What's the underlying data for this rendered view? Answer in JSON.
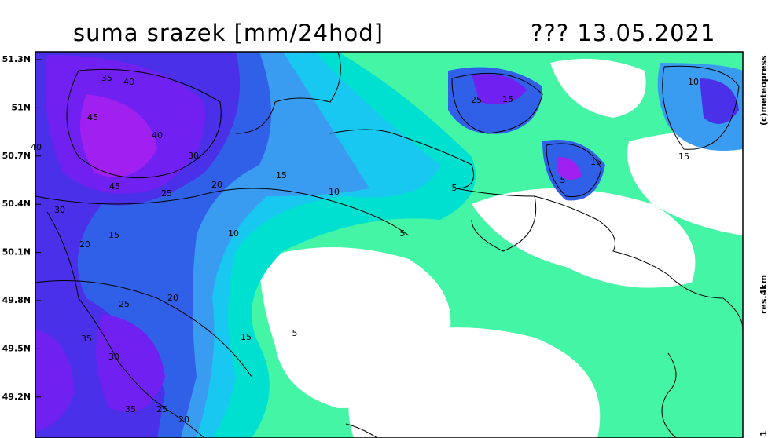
{
  "header": {
    "title": "suma srazek [mm/24hod]",
    "date": "??? 13.05.2021"
  },
  "lat_labels": [
    "51.3N",
    "51N",
    "50.7N",
    "50.4N",
    "50.1N",
    "49.8N",
    "49.5N",
    "49.2N"
  ],
  "side_texts": {
    "copyright": "(c)meteopress",
    "resolution": "res.4km",
    "corner": "1"
  },
  "contour_labels": [
    "35",
    "40",
    "45",
    "40",
    "40",
    "45",
    "25",
    "20",
    "30",
    "15",
    "10",
    "5",
    "15",
    "25",
    "10",
    "15",
    "5",
    "15",
    "30",
    "15",
    "20",
    "10",
    "5",
    "20",
    "25",
    "15",
    "5",
    "35",
    "30",
    "35",
    "25",
    "20"
  ]
}
